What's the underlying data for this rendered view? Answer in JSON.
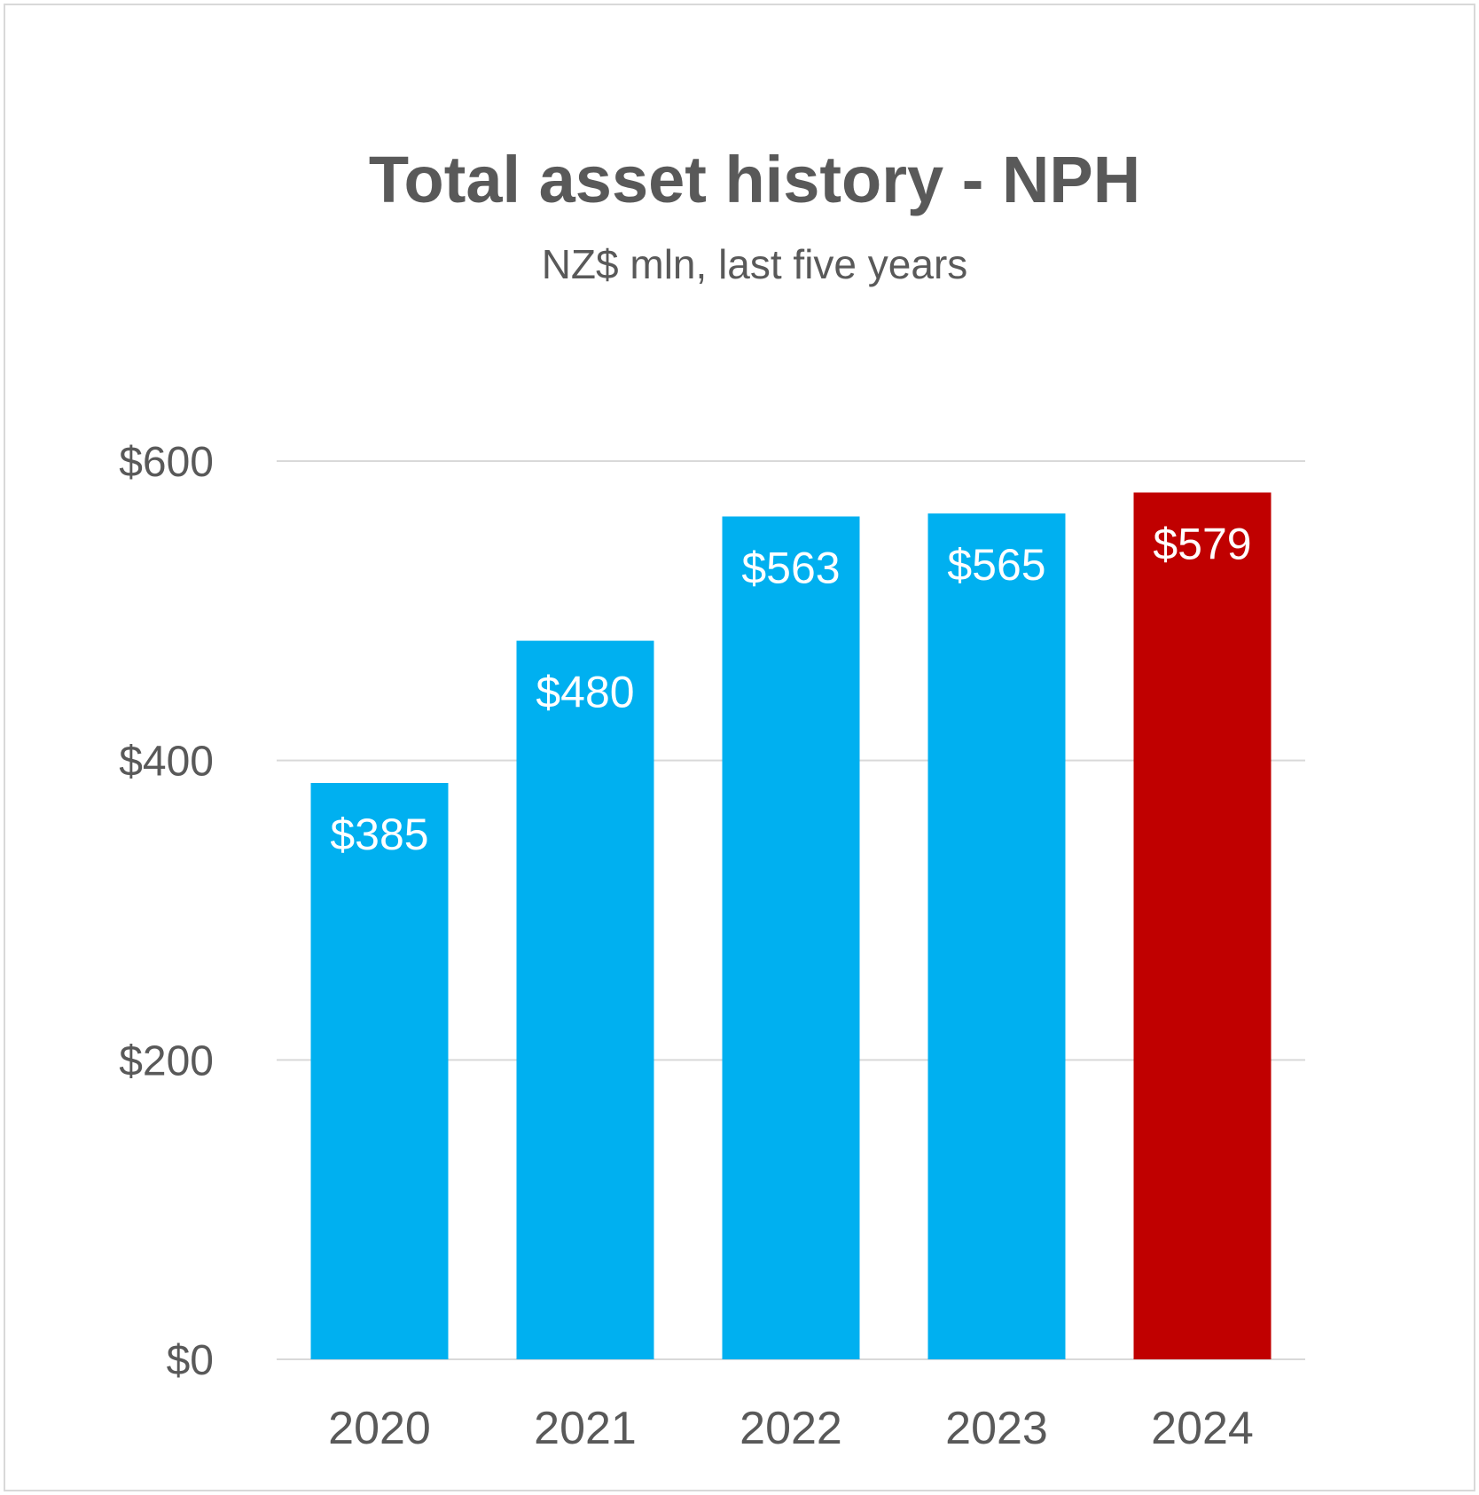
{
  "chart_data": {
    "type": "bar",
    "title": "Total asset history - NPH",
    "subtitle": "NZ$ mln, last five years",
    "xlabel": "",
    "ylabel": "",
    "categories": [
      "2020",
      "2021",
      "2022",
      "2023",
      "2024"
    ],
    "values": [
      385,
      480,
      563,
      565,
      579
    ],
    "data_labels": [
      "$385",
      "$480",
      "$563",
      "$565",
      "$579"
    ],
    "ylim": [
      0,
      600
    ],
    "yticks": [
      0,
      200,
      400,
      600
    ],
    "ytick_labels": [
      "$0",
      "$200",
      "$400",
      "$600"
    ],
    "grid": true,
    "legend": "none",
    "bar_colors": [
      "#00b0f0",
      "#00b0f0",
      "#00b0f0",
      "#00b0f0",
      "#c00000"
    ],
    "grid_color": "#d9d9d9",
    "text_color": "#595959",
    "label_color": "#ffffff"
  }
}
